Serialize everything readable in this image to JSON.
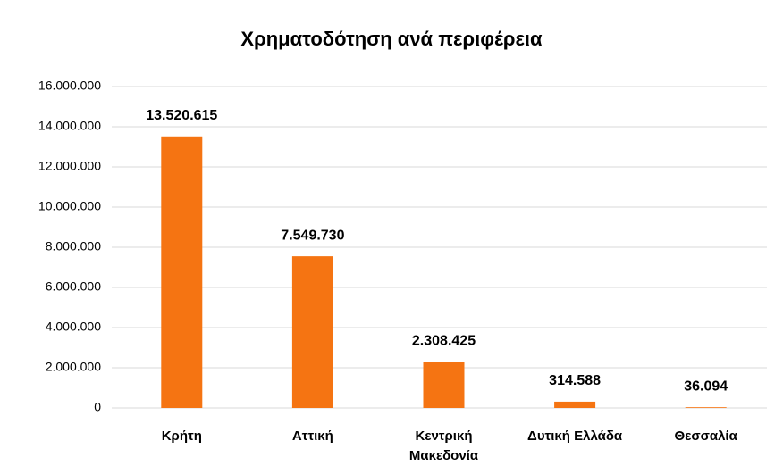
{
  "chart_data": {
    "type": "bar",
    "title": "Χρηματοδότηση ανά περιφέρεια",
    "categories": [
      "Κρήτη",
      "Αττική",
      "Κεντρική Μακεδονία",
      "Δυτική Ελλάδα",
      "Θεσσαλία"
    ],
    "values": [
      13520615,
      7549730,
      2308425,
      314588,
      36094
    ],
    "value_labels": [
      "13.520.615",
      "7.549.730",
      "2.308.425",
      "314.588",
      "36.094"
    ],
    "color": "#f57412",
    "ylim": [
      0,
      16000000
    ],
    "yticks": [
      0,
      {
        "value": 2000000,
        "label": "2.000.000"
      },
      {
        "value": 4000000,
        "label": "4.000.000"
      },
      {
        "value": 6000000,
        "label": "6.000.000"
      },
      {
        "value": 8000000,
        "label": "8.000.000"
      },
      {
        "value": 10000000,
        "label": "10.000.000"
      },
      {
        "value": 12000000,
        "label": "12.000.000"
      },
      {
        "value": 14000000,
        "label": "14.000.000"
      },
      {
        "value": 16000000,
        "label": "16.000.000"
      }
    ],
    "grid": true
  }
}
